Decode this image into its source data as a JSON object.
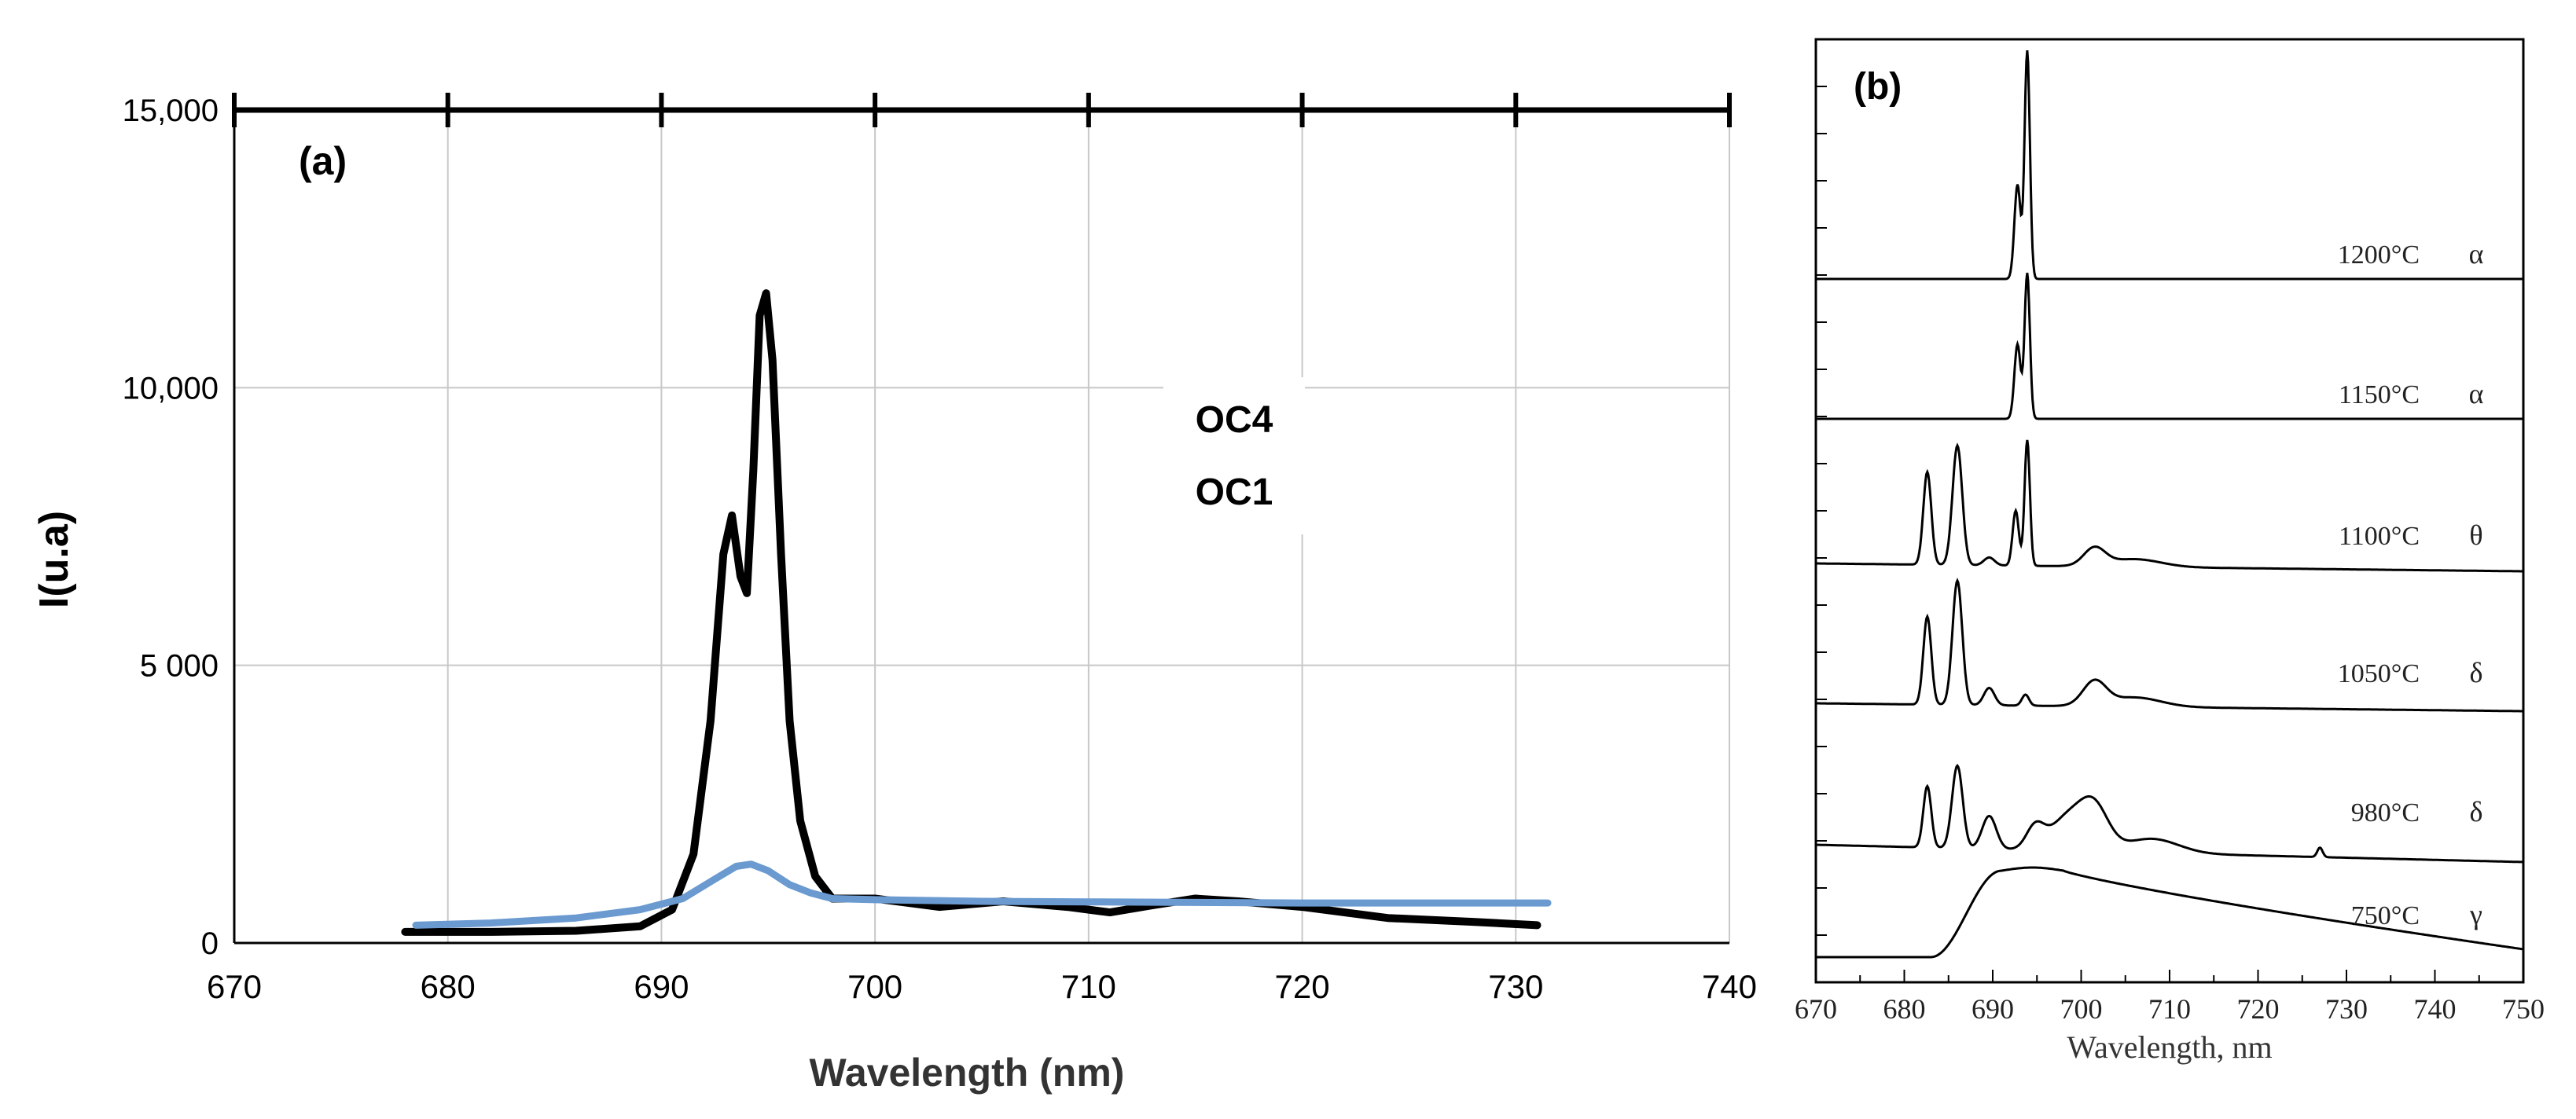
{
  "chart_data": [
    {
      "type": "line",
      "panel_label": "(a)",
      "xlabel": "Wavelength (nm)",
      "ylabel": "I(u.a)",
      "xlim": [
        670,
        740
      ],
      "ylim": [
        0,
        15000
      ],
      "x_ticks": [
        "670",
        "680",
        "690",
        "700",
        "710",
        "720",
        "730",
        "740"
      ],
      "y_ticks": [
        "0",
        "5 000",
        "10,000",
        "15,000"
      ],
      "grid": true,
      "legend": [
        "OC4",
        "OC1"
      ],
      "series": [
        {
          "name": "OC4",
          "color": "#000000",
          "x": [
            678,
            682,
            686,
            689,
            690.5,
            691.5,
            692.3,
            692.9,
            693.3,
            693.7,
            694.0,
            694.3,
            694.6,
            694.9,
            695.2,
            695.6,
            696.0,
            696.5,
            697.2,
            698,
            700,
            703,
            706,
            709,
            711,
            713,
            715,
            717,
            720,
            724,
            728,
            731
          ],
          "y": [
            200,
            200,
            220,
            300,
            600,
            1600,
            4000,
            7000,
            7700,
            6600,
            6300,
            8500,
            11300,
            11700,
            10500,
            7000,
            4000,
            2200,
            1200,
            800,
            800,
            650,
            750,
            650,
            550,
            680,
            800,
            750,
            650,
            450,
            380,
            320
          ]
        },
        {
          "name": "OC1",
          "color": "#6a9ad0",
          "x": [
            678.5,
            682,
            686,
            689,
            691,
            692.5,
            693.5,
            694.2,
            695,
            696,
            697,
            698,
            700,
            705,
            710,
            715,
            720,
            725,
            731.5
          ],
          "y": [
            320,
            360,
            450,
            600,
            800,
            1150,
            1380,
            1420,
            1300,
            1050,
            900,
            800,
            780,
            750,
            740,
            730,
            720,
            720,
            720
          ]
        }
      ]
    },
    {
      "type": "line",
      "panel_label": "(b)",
      "xlabel": "Wavelength, nm",
      "xlim": [
        670,
        750
      ],
      "x_ticks": [
        "670",
        "680",
        "690",
        "700",
        "710",
        "720",
        "730",
        "740",
        "750"
      ],
      "series": [
        {
          "temperature": "1200°C",
          "phase": "α"
        },
        {
          "temperature": "1150°C",
          "phase": "α"
        },
        {
          "temperature": "1100°C",
          "phase": "θ"
        },
        {
          "temperature": "1050°C",
          "phase": "δ"
        },
        {
          "temperature": "980°C",
          "phase": "δ"
        },
        {
          "temperature": "750°C",
          "phase": "γ"
        }
      ]
    }
  ]
}
